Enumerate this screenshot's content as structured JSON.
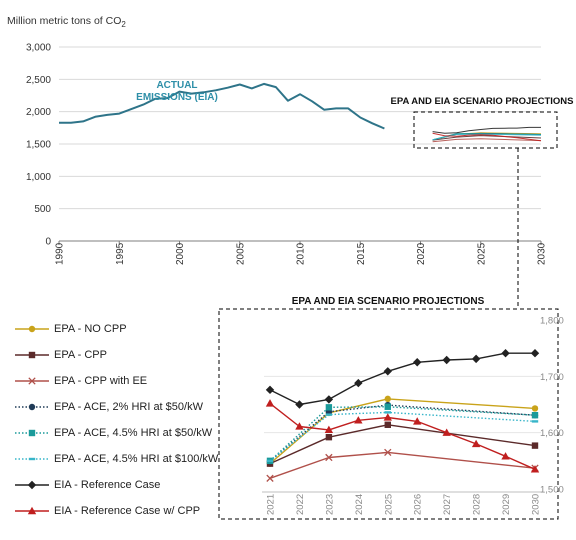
{
  "chart_data": [
    {
      "type": "line",
      "ylabel": "Million metric tons of CO₂",
      "xlim": [
        1990,
        2030
      ],
      "ylim": [
        0,
        3000
      ],
      "y_ticks": [
        0,
        500,
        1000,
        1500,
        2000,
        2500,
        3000
      ],
      "y_tick_labels": [
        "0",
        "500",
        "1,000",
        "1,500",
        "2,000",
        "2,500",
        "3,000"
      ],
      "x_ticks": [
        1990,
        1995,
        2000,
        2005,
        2010,
        2015,
        2020,
        2025,
        2030
      ],
      "grid": "horizontal",
      "annotations": [
        "ACTUAL",
        "EMISSIONS (EIA)",
        "EPA AND EIA SCENARIO PROJECTIONS"
      ],
      "series": [
        {
          "name": "ACTUAL EMISSIONS (EIA)",
          "color": "#2e7489",
          "x": [
            1990,
            1991,
            1992,
            1993,
            1994,
            1995,
            1996,
            1997,
            1998,
            1999,
            2000,
            2001,
            2002,
            2003,
            2004,
            2005,
            2006,
            2007,
            2008,
            2009,
            2010,
            2011,
            2012,
            2013,
            2014,
            2015,
            2016,
            2017
          ],
          "y": [
            1830,
            1830,
            1850,
            1920,
            1950,
            1970,
            2040,
            2110,
            2200,
            2210,
            2310,
            2280,
            2300,
            2330,
            2370,
            2420,
            2360,
            2430,
            2380,
            2170,
            2270,
            2160,
            2030,
            2050,
            2050,
            1910,
            1820,
            1740
          ]
        }
      ]
    },
    {
      "type": "line",
      "title": "EPA AND EIA SCENARIO PROJECTIONS",
      "categories": [
        "2021",
        "2022",
        "2023",
        "2024",
        "2025",
        "2026",
        "2027",
        "2028",
        "2029",
        "2030"
      ],
      "ylim": [
        1500,
        1800
      ],
      "y_ticks": [
        1500,
        1600,
        1700,
        1800
      ],
      "y_tick_labels": [
        "1,500",
        "1,600",
        "1,700",
        "1,800"
      ],
      "y_axis_side": "right",
      "series": [
        {
          "name": "EPA - NO CPP",
          "color": "#c9a31a",
          "marker": "circle",
          "dash": "solid",
          "x": [
            2021,
            2023,
            2025,
            2030
          ],
          "y": [
            1545,
            1635,
            1660,
            1643
          ]
        },
        {
          "name": "EPA - CPP",
          "color": "#5b2a2a",
          "marker": "square",
          "dash": "solid",
          "x": [
            2021,
            2023,
            2025,
            2030
          ],
          "y": [
            1545,
            1592,
            1614,
            1577
          ]
        },
        {
          "name": "EPA - CPP with EE",
          "color": "#b0504a",
          "marker": "x",
          "dash": "solid",
          "x": [
            2021,
            2023,
            2025,
            2030
          ],
          "y": [
            1519,
            1556,
            1565,
            1537
          ]
        },
        {
          "name": "EPA - ACE, 2% HRI at $50/kW",
          "color": "#1f3b57",
          "marker": "circle",
          "dash": "dotted",
          "x": [
            2021,
            2023,
            2025,
            2030
          ],
          "y": [
            1549,
            1637,
            1649,
            1631
          ]
        },
        {
          "name": "EPA - ACE, 4.5% HRI at $50/kW",
          "color": "#1a9a9a",
          "marker": "square",
          "dash": "dotted",
          "x": [
            2021,
            2023,
            2025,
            2030
          ],
          "y": [
            1550,
            1645,
            1646,
            1631
          ]
        },
        {
          "name": "EPA - ACE, 4.5% HRI at $100/kW",
          "color": "#37b5c9",
          "marker": "dash",
          "dash": "dotted",
          "x": [
            2021,
            2023,
            2025,
            2030
          ],
          "y": [
            1550,
            1632,
            1636,
            1620
          ]
        },
        {
          "name": "EIA - Reference Case",
          "color": "#222222",
          "marker": "diamond",
          "dash": "solid",
          "x": [
            2021,
            2022,
            2023,
            2024,
            2025,
            2026,
            2027,
            2028,
            2029,
            2030
          ],
          "y": [
            1676,
            1650,
            1659,
            1688,
            1709,
            1725,
            1729,
            1731,
            1741,
            1741
          ]
        },
        {
          "name": "EIA - Reference Case w/ CPP",
          "color": "#c01f1f",
          "marker": "triangle",
          "dash": "solid",
          "x": [
            2021,
            2022,
            2023,
            2024,
            2025,
            2026,
            2027,
            2028,
            2029,
            2030
          ],
          "y": [
            1652,
            1611,
            1605,
            1622,
            1627,
            1620,
            1600,
            1580,
            1558,
            1535
          ]
        }
      ]
    }
  ]
}
